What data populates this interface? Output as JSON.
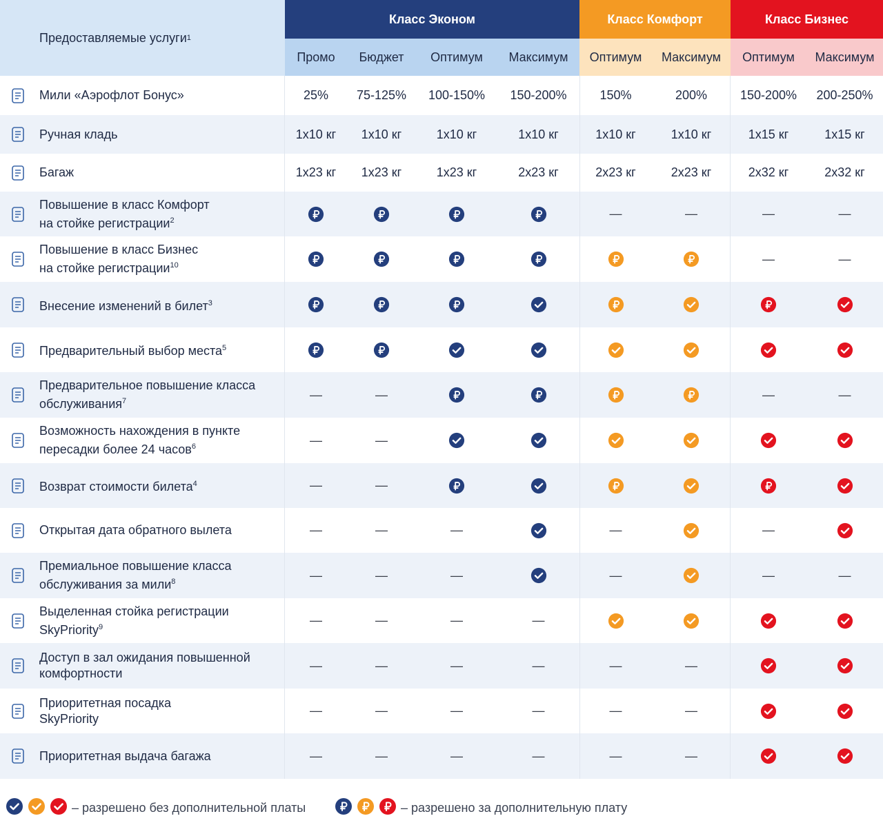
{
  "header": {
    "services_label": "Предоставляемые услуги",
    "services_sup": "1",
    "classes": [
      {
        "label": "Класс Эконом",
        "color": "#243f7d"
      },
      {
        "label": "Класс Комфорт",
        "color": "#f49a23"
      },
      {
        "label": "Класс Бизнес",
        "color": "#e3131f"
      }
    ],
    "fares": [
      "Промо",
      "Бюджет",
      "Оптимум",
      "Максимум",
      "Оптимум",
      "Максимум",
      "Оптимум",
      "Максимум"
    ]
  },
  "colors": {
    "navy": "#243f7d",
    "orange": "#f49a23",
    "red": "#e3131f",
    "econ_sub_bg": "#b9d4f0",
    "comf_sub_bg": "#fde3bd",
    "bus_sub_bg": "#f9c9cb",
    "stripe": "#edf2f9"
  },
  "rows": [
    {
      "icon": "miles-plane-icon",
      "label": "Мили «Аэрофлот Бонус»",
      "sup": "",
      "cells": [
        "25%",
        "75-125%",
        "100-150%",
        "150-200%",
        "150%",
        "200%",
        "150-200%",
        "200-250%"
      ]
    },
    {
      "icon": "hand-luggage-icon",
      "label": "Ручная кладь",
      "sup": "",
      "cells": [
        "1x10 кг",
        "1x10 кг",
        "1x10 кг",
        "1x10 кг",
        "1x10 кг",
        "1x10 кг",
        "1x15 кг",
        "1x15 кг"
      ]
    },
    {
      "icon": "baggage-icon",
      "label": "Багаж",
      "sup": "",
      "cells": [
        "1x23 кг",
        "1x23 кг",
        "1x23 кг",
        "2x23 кг",
        "2x23 кг",
        "2x23 кг",
        "2x32 кг",
        "2x32 кг"
      ]
    },
    {
      "icon": "seat-upgrade-icon",
      "label": "Повышение в класс Комфорт",
      "label2": "на стойке регистрации",
      "sup": "2",
      "cells": [
        "rub",
        "rub",
        "rub",
        "rub",
        "dash",
        "dash",
        "dash",
        "dash"
      ]
    },
    {
      "icon": "seat-upgrade-icon",
      "label": "Повышение в класс Бизнес",
      "label2": "на стойке регистрации",
      "sup": "10",
      "cells": [
        "rub",
        "rub",
        "rub",
        "rub",
        "rub",
        "rub",
        "dash",
        "dash"
      ]
    },
    {
      "icon": "ticket-change-icon",
      "label": "Внесение изменений в билет",
      "sup": "3",
      "cells": [
        "rub",
        "rub",
        "rub",
        "check",
        "rub",
        "check",
        "rub",
        "check"
      ]
    },
    {
      "icon": "seat-select-icon",
      "label": "Предварительный выбор места",
      "sup": "5",
      "cells": [
        "rub",
        "rub",
        "check",
        "check",
        "check",
        "check",
        "check",
        "check"
      ]
    },
    {
      "icon": "class-upgrade-icon",
      "label": "Предварительное повышение класса",
      "label2": "обслуживания",
      "sup": "7",
      "cells": [
        "dash",
        "dash",
        "rub",
        "rub",
        "rub",
        "rub",
        "dash",
        "dash"
      ]
    },
    {
      "icon": "transfer-point-icon",
      "label": "Возможность нахождения в пункте",
      "label2": "пересадки более 24 часов",
      "sup": "6",
      "cells": [
        "dash",
        "dash",
        "check",
        "check",
        "check",
        "check",
        "check",
        "check"
      ]
    },
    {
      "icon": "wallet-refund-icon",
      "label": "Возврат стоимости билета",
      "sup": "4",
      "cells": [
        "dash",
        "dash",
        "rub",
        "check",
        "rub",
        "check",
        "rub",
        "check"
      ]
    },
    {
      "icon": "calendar-icon",
      "label": "Открытая дата обратного вылета",
      "sup": "",
      "cells": [
        "dash",
        "dash",
        "dash",
        "check",
        "dash",
        "check",
        "dash",
        "check"
      ]
    },
    {
      "icon": "laurel-icon",
      "label": "Премиальное повышение класса",
      "label2": "обслуживания за мили",
      "sup": "8",
      "cells": [
        "dash",
        "dash",
        "dash",
        "check",
        "dash",
        "check",
        "dash",
        "dash"
      ]
    },
    {
      "icon": "checkin-desk-icon",
      "label": "Выделенная стойка регистрации",
      "label2": "SkyPriority",
      "sup": "9",
      "cells": [
        "dash",
        "dash",
        "dash",
        "dash",
        "check",
        "check",
        "check",
        "check"
      ]
    },
    {
      "icon": "lounge-sofa-icon",
      "label": "Доступ в зал ожидания повышенной",
      "label2": "комфортности",
      "sup": "",
      "cells": [
        "dash",
        "dash",
        "dash",
        "dash",
        "dash",
        "dash",
        "check",
        "check"
      ]
    },
    {
      "icon": "boarding-person-icon",
      "label": "Приоритетная посадка",
      "label2": "SkyPriority",
      "sup": "",
      "cells": [
        "dash",
        "dash",
        "dash",
        "dash",
        "dash",
        "dash",
        "check",
        "check"
      ]
    },
    {
      "icon": "laptop-icon",
      "label": "Приоритетная выдача багажа",
      "sup": "",
      "cells": [
        "dash",
        "dash",
        "dash",
        "dash",
        "dash",
        "dash",
        "check",
        "check"
      ]
    }
  ],
  "legend": {
    "free_text": "– разрешено без дополнительной платы",
    "paid_text": "– разрешено за дополнительную плату"
  }
}
